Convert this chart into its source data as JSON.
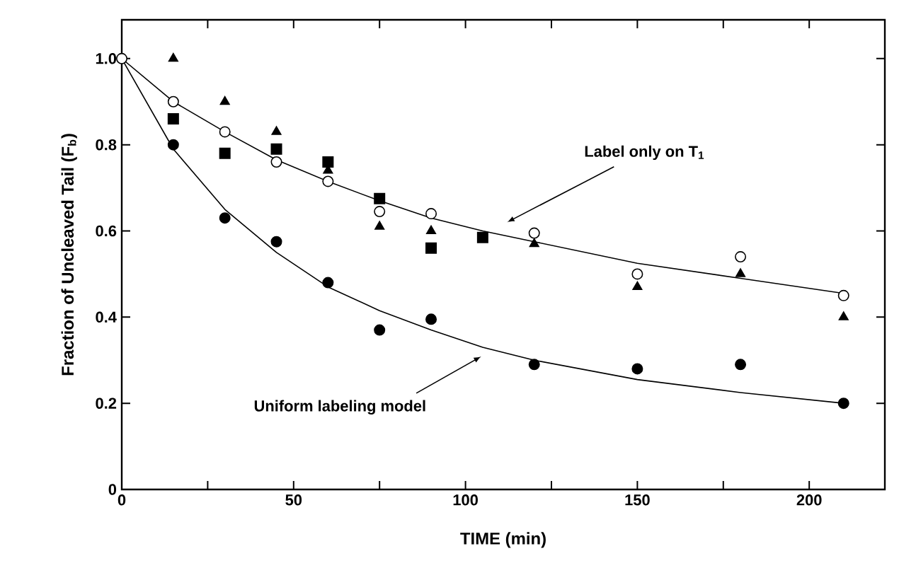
{
  "chart_data": {
    "type": "scatter",
    "xlabel": "TIME (min)",
    "ylabel": "Fraction of Uncleaved Tail (F$_{b}$)",
    "xlim": [
      0,
      222
    ],
    "ylim": [
      0,
      1.09
    ],
    "xticks": [
      0,
      {
        "value": 25,
        "label": null
      },
      50,
      {
        "value": 75,
        "label": null
      },
      100,
      {
        "value": 125,
        "label": null
      },
      150,
      {
        "value": 175,
        "label": null
      },
      200
    ],
    "yticks": [
      0,
      0.2,
      0.4,
      0.6,
      0.8,
      {
        "value": 1.0,
        "label": "1.0"
      }
    ],
    "grid": false,
    "series": [
      {
        "marker": "circle",
        "color": "#ffffff",
        "x": [
          0,
          15,
          30,
          45,
          60,
          75,
          90,
          120,
          150,
          180,
          210
        ],
        "values": [
          1.0,
          0.9,
          0.83,
          0.76,
          0.715,
          0.645,
          0.64,
          0.595,
          0.5,
          0.54,
          0.45
        ]
      },
      {
        "marker": "circle",
        "color": "#000000",
        "x": [
          15,
          30,
          45,
          60,
          75,
          90,
          120,
          150,
          180,
          210
        ],
        "values": [
          0.8,
          0.63,
          0.575,
          0.48,
          0.37,
          0.395,
          0.29,
          0.28,
          0.29,
          0.2
        ]
      },
      {
        "marker": "triangle",
        "color": "#000000",
        "x": [
          15,
          30,
          45,
          60,
          75,
          90,
          120,
          150,
          180,
          210
        ],
        "values": [
          1.0,
          0.9,
          0.83,
          0.74,
          0.61,
          0.6,
          0.57,
          0.47,
          0.5,
          0.4
        ]
      },
      {
        "marker": "square",
        "color": "#000000",
        "x": [
          15,
          30,
          45,
          60,
          75,
          90,
          105
        ],
        "values": [
          0.86,
          0.78,
          0.79,
          0.76,
          0.675,
          0.56,
          0.585
        ]
      },
      {
        "type": "line",
        "marker": "none",
        "line_style": "solid",
        "color": "#000000",
        "x": [
          0,
          15,
          30,
          45,
          60,
          75,
          90,
          105,
          120,
          150,
          180,
          210
        ],
        "values": [
          1.0,
          0.9,
          0.83,
          0.765,
          0.715,
          0.67,
          0.63,
          0.6,
          0.575,
          0.525,
          0.49,
          0.455
        ]
      },
      {
        "type": "line",
        "marker": "none",
        "line_style": "solid",
        "color": "#000000",
        "x": [
          0,
          15,
          30,
          45,
          60,
          75,
          90,
          105,
          120,
          150,
          180,
          210
        ],
        "values": [
          1.0,
          0.79,
          0.65,
          0.55,
          0.47,
          0.415,
          0.37,
          0.33,
          0.3,
          0.255,
          0.225,
          0.2
        ]
      }
    ],
    "annotations": [
      "Label only on T$_{1}$",
      "Uniform labeling model"
    ]
  }
}
